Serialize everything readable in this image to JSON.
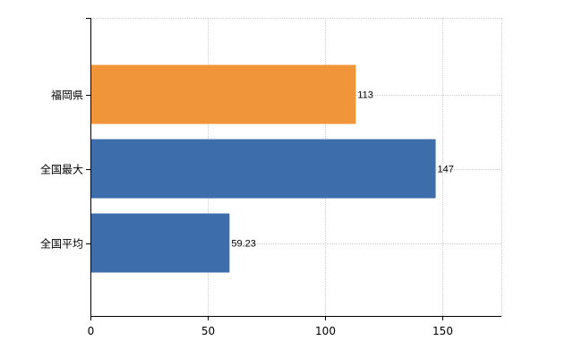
{
  "chart_data": {
    "type": "bar",
    "orientation": "horizontal",
    "categories": [
      "福岡県",
      "全国最大",
      "全国平均"
    ],
    "values": [
      113,
      147,
      59.23
    ],
    "value_labels": [
      "113",
      "147",
      "59.23"
    ],
    "bar_colors": [
      "#f0953a",
      "#3d6eab",
      "#3d6eab"
    ],
    "title": "",
    "xlabel": "",
    "ylabel": "",
    "xlim": [
      0,
      175
    ],
    "xticks": [
      0,
      50,
      100,
      150
    ],
    "xtick_labels": [
      "0",
      "50",
      "100",
      "150"
    ],
    "grid": true,
    "legend": "none"
  }
}
